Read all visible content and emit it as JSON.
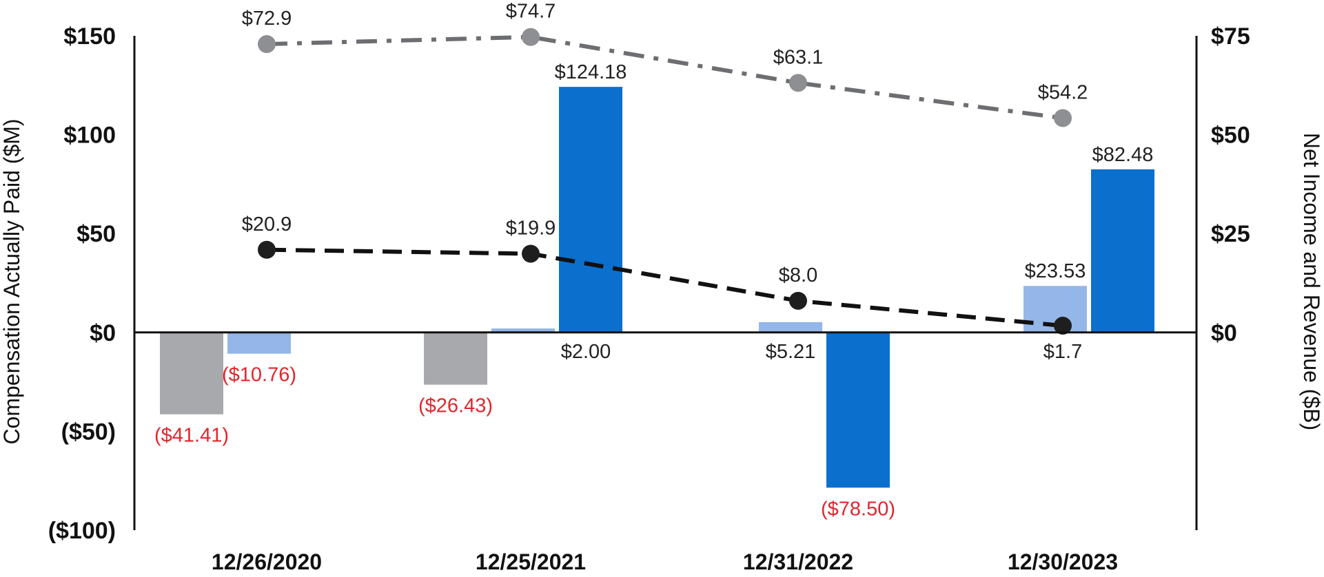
{
  "chart_data": {
    "type": "bar",
    "categories": [
      "12/26/2020",
      "12/25/2021",
      "12/31/2022",
      "12/30/2023"
    ],
    "ylabel_left": "Compensation Actually Paid ($M)",
    "ylabel_right": "Net Income and Revenue ($B)",
    "left_axis": {
      "ylim": [
        -100,
        150
      ],
      "ticks": [
        150,
        100,
        50,
        0,
        -50,
        -100
      ],
      "tick_labels": [
        "$150",
        "$100",
        "$50",
        "$0",
        "($50)",
        "($100)"
      ]
    },
    "right_axis": {
      "ylim": [
        -50,
        75
      ],
      "ticks": [
        75,
        50,
        25,
        0
      ],
      "tick_labels": [
        "$75",
        "$50",
        "$25",
        "$0"
      ]
    },
    "bar_series": [
      {
        "color": "#a8a9ac",
        "values": [
          -41.41,
          -26.43,
          null,
          null
        ],
        "labels": [
          "($41.41)",
          "($26.43)",
          "",
          ""
        ]
      },
      {
        "color": "#94b6e8",
        "values": [
          -10.76,
          2.0,
          5.21,
          23.53
        ],
        "labels": [
          "($10.76)",
          "$2.00",
          "$5.21",
          "$23.53"
        ]
      },
      {
        "color": "#0b6fce",
        "values": [
          null,
          124.18,
          -78.5,
          82.48
        ],
        "labels": [
          "",
          "$124.18",
          "($78.50)",
          "$82.48"
        ]
      }
    ],
    "line_series": [
      {
        "axis": "right",
        "color": "#6d6e71",
        "marker_color": "#8e8f92",
        "dash": "dash-dot",
        "values": [
          72.9,
          74.7,
          63.1,
          54.2
        ],
        "labels": [
          "$72.9",
          "$74.7",
          "$63.1",
          "$54.2"
        ]
      },
      {
        "axis": "right",
        "color": "#111111",
        "marker_color": "#1e1e1e",
        "dash": "dash",
        "values": [
          20.9,
          19.9,
          8.0,
          1.7
        ],
        "labels": [
          "$20.9",
          "$19.9",
          "$8.0",
          "$1.7"
        ]
      }
    ],
    "negative_label_color": "#e1262d",
    "label_color": "#222222",
    "grid": false,
    "legend": "none"
  }
}
